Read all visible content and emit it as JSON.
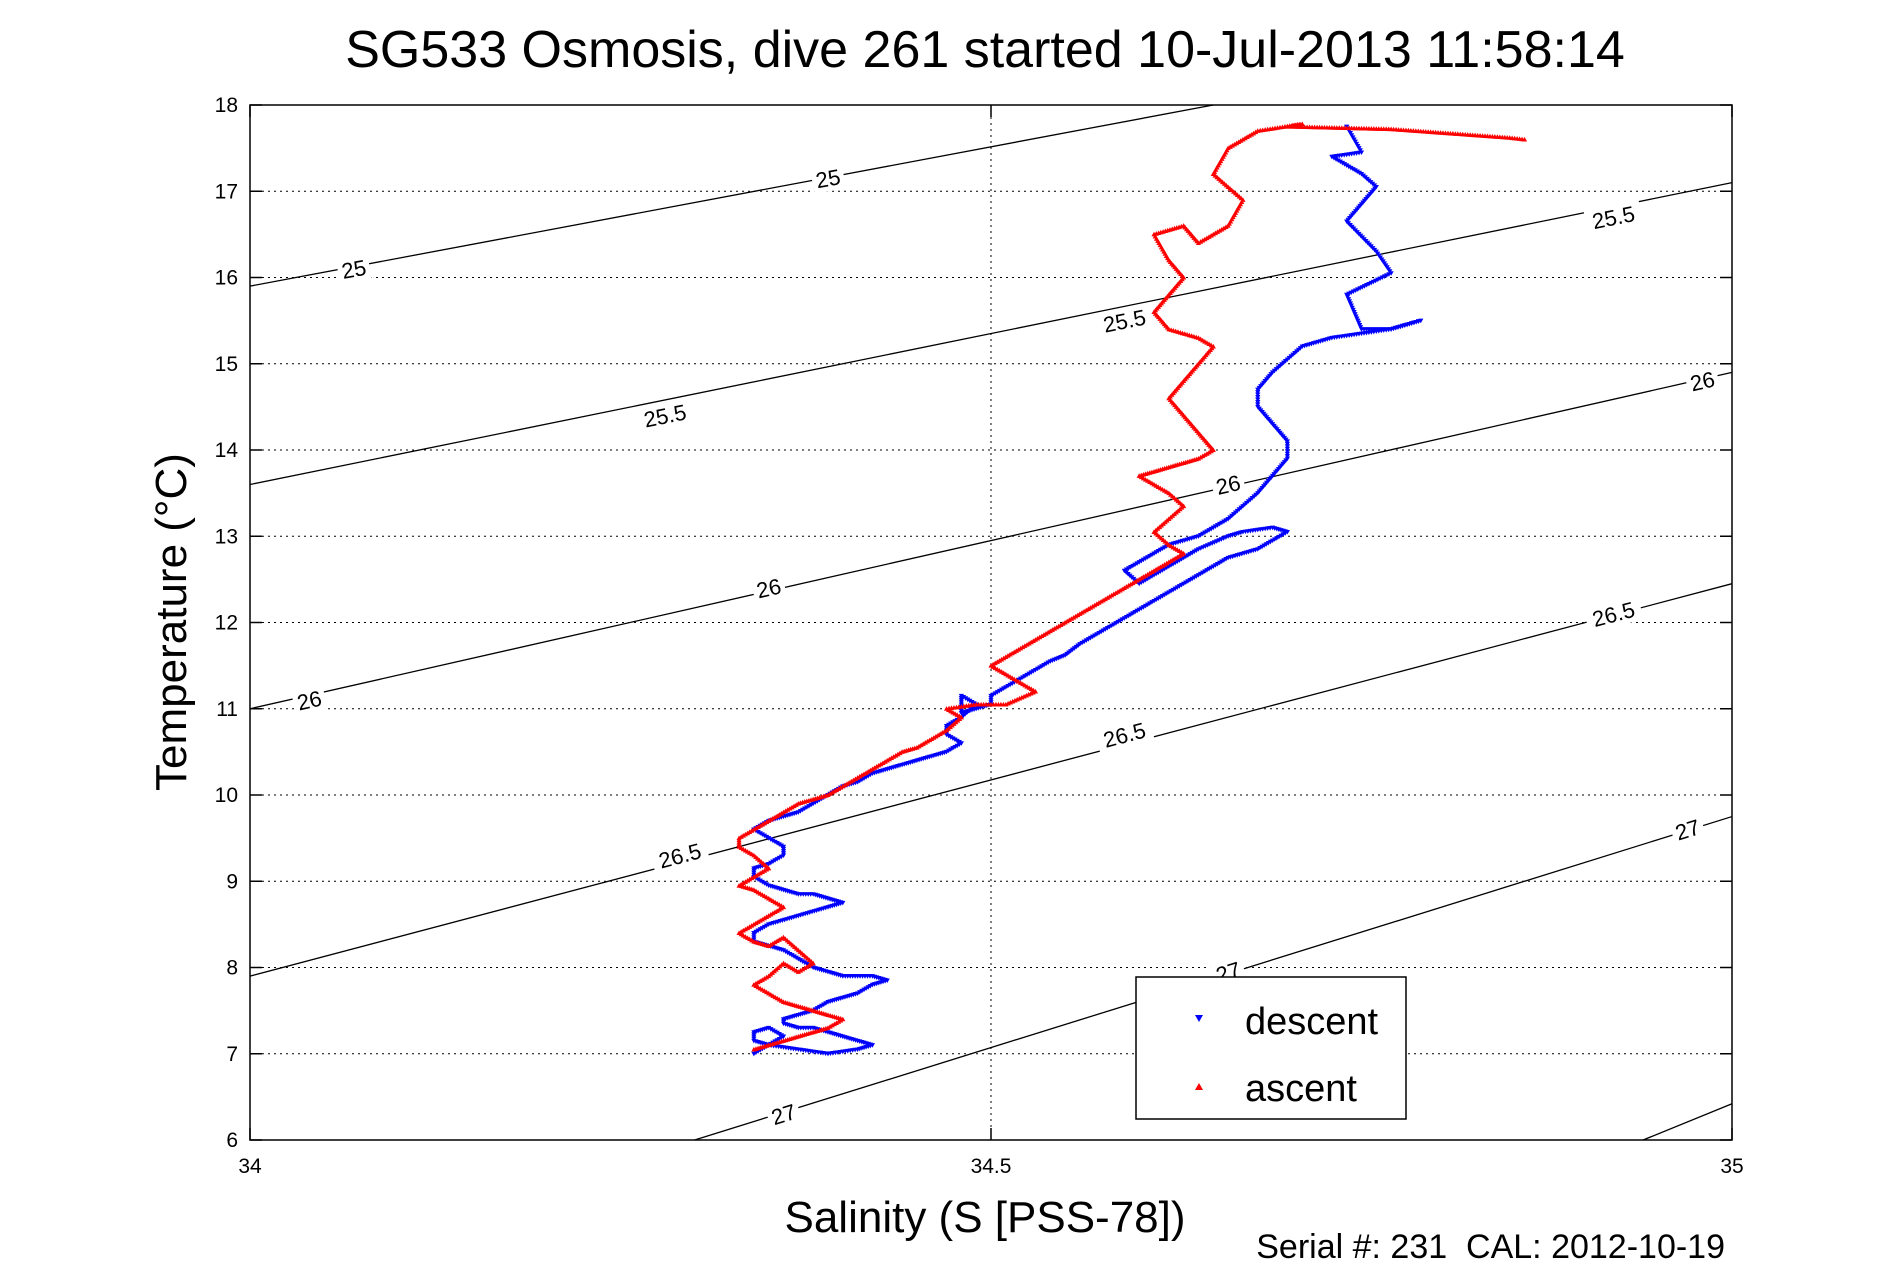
{
  "chart_data": {
    "type": "scatter",
    "title": "SG533 Osmosis, dive 261 started 10-Jul-2013 11:58:14",
    "xlabel": "Salinity (S [PSS-78])",
    "ylabel": "Temperature (°C)",
    "footer": "Serial #: 231  CAL: 2012-10-19",
    "xlim": [
      34,
      35
    ],
    "ylim": [
      6,
      18
    ],
    "xticks": [
      34,
      34.5,
      35
    ],
    "yticks": [
      6,
      7,
      8,
      9,
      10,
      11,
      12,
      13,
      14,
      15,
      16,
      17,
      18
    ],
    "grid": true,
    "legend_position": "bottom-right",
    "density_contours": [
      {
        "label": "25",
        "points": [
          [
            34,
            15.9
          ],
          [
            34.65,
            18
          ]
        ],
        "label_at": [
          [
            34.07,
            16.1
          ],
          [
            34.39,
            17.15
          ]
        ]
      },
      {
        "label": "25.5",
        "points": [
          [
            34,
            13.6
          ],
          [
            35,
            17.1
          ]
        ],
        "label_at": [
          [
            34.28,
            14.4
          ],
          [
            34.59,
            15.5
          ],
          [
            34.92,
            16.7
          ]
        ]
      },
      {
        "label": "26",
        "points": [
          [
            34,
            11.0
          ],
          [
            35,
            14.9
          ]
        ],
        "label_at": [
          [
            34.04,
            11.1
          ],
          [
            34.35,
            12.4
          ],
          [
            34.66,
            13.6
          ],
          [
            34.98,
            14.8
          ]
        ]
      },
      {
        "label": "26.5",
        "points": [
          [
            34,
            7.9
          ],
          [
            35,
            12.45
          ]
        ],
        "label_at": [
          [
            34.29,
            9.3
          ],
          [
            34.59,
            10.7
          ],
          [
            34.92,
            12.1
          ]
        ]
      },
      {
        "label": "27",
        "points": [
          [
            34.3,
            6
          ],
          [
            35,
            9.75
          ]
        ],
        "label_at": [
          [
            34.36,
            6.3
          ],
          [
            34.66,
            7.95
          ],
          [
            34.97,
            9.6
          ]
        ]
      },
      {
        "label": "",
        "points": [
          [
            34.94,
            6
          ],
          [
            35,
            6.42
          ]
        ],
        "label_at": []
      }
    ],
    "series": [
      {
        "name": "descent",
        "color": "#0000ff",
        "marker": "triangle-down",
        "x": [
          34.74,
          34.75,
          34.73,
          34.74,
          34.75,
          34.76,
          34.75,
          34.74,
          34.76,
          34.77,
          34.74,
          34.75,
          34.77,
          34.79,
          34.77,
          34.75,
          34.73,
          34.71,
          34.7,
          34.69,
          34.68,
          34.68,
          34.69,
          34.7,
          34.7,
          34.69,
          34.68,
          34.67,
          34.66,
          34.65,
          34.64,
          34.62,
          34.61,
          34.6,
          34.59,
          34.6,
          34.62,
          34.64,
          34.66,
          34.67,
          34.69,
          34.7,
          34.68,
          34.66,
          34.65,
          34.64,
          34.63,
          34.62,
          34.61,
          34.6,
          34.59,
          34.58,
          34.57,
          34.56,
          34.55,
          34.54,
          34.53,
          34.52,
          34.51,
          34.5,
          34.5,
          34.49,
          34.48,
          34.48,
          34.48,
          34.49,
          34.48,
          34.47,
          34.47,
          34.48,
          34.47,
          34.46,
          34.45,
          34.44,
          34.43,
          34.42,
          34.41,
          34.4,
          34.39,
          34.38,
          34.37,
          34.36,
          34.35,
          34.34,
          34.35,
          34.36,
          34.36,
          34.35,
          34.34,
          34.34,
          34.35,
          34.36,
          34.37,
          34.38,
          34.39,
          34.4,
          34.39,
          34.37,
          34.35,
          34.34,
          34.34,
          34.35,
          34.36,
          34.37,
          34.38,
          34.39,
          34.4,
          34.42,
          34.43,
          34.42,
          34.41,
          34.4,
          34.39,
          34.38,
          34.37,
          34.36,
          34.36,
          34.37,
          34.38,
          34.39,
          34.4,
          34.41,
          34.42,
          34.41,
          34.39,
          34.37,
          34.35,
          34.34,
          34.34,
          34.35,
          34.36,
          34.35,
          34.34
        ],
        "y": [
          17.75,
          17.45,
          17.4,
          17.3,
          17.2,
          17.05,
          16.85,
          16.65,
          16.3,
          16.05,
          15.8,
          15.4,
          15.4,
          15.5,
          15.4,
          15.35,
          15.3,
          15.2,
          15.05,
          14.9,
          14.7,
          14.5,
          14.3,
          14.1,
          13.9,
          13.7,
          13.5,
          13.35,
          13.2,
          13.1,
          13.0,
          12.9,
          12.8,
          12.7,
          12.6,
          12.45,
          12.65,
          12.85,
          13.0,
          13.05,
          13.1,
          13.05,
          12.85,
          12.75,
          12.65,
          12.55,
          12.45,
          12.35,
          12.25,
          12.15,
          12.05,
          11.95,
          11.85,
          11.75,
          11.62,
          11.55,
          11.45,
          11.35,
          11.25,
          11.15,
          11.05,
          11.0,
          10.95,
          11.05,
          11.15,
          11.05,
          10.9,
          10.8,
          10.7,
          10.6,
          10.5,
          10.45,
          10.4,
          10.35,
          10.3,
          10.25,
          10.15,
          10.1,
          10.0,
          9.9,
          9.8,
          9.75,
          9.7,
          9.6,
          9.5,
          9.4,
          9.3,
          9.2,
          9.15,
          9.05,
          8.95,
          8.9,
          8.85,
          8.85,
          8.8,
          8.75,
          8.7,
          8.6,
          8.5,
          8.4,
          8.3,
          8.25,
          8.2,
          8.1,
          8.0,
          7.95,
          7.9,
          7.9,
          7.85,
          7.8,
          7.7,
          7.65,
          7.6,
          7.5,
          7.45,
          7.4,
          7.35,
          7.3,
          7.3,
          7.25,
          7.2,
          7.15,
          7.1,
          7.05,
          7.0,
          7.05,
          7.1,
          7.15,
          7.25,
          7.3,
          7.2,
          7.1,
          7.0
        ]
      },
      {
        "name": "ascent",
        "color": "#ff0000",
        "marker": "triangle-up",
        "x": [
          34.86,
          34.85,
          34.77,
          34.7,
          34.71,
          34.68,
          34.66,
          34.65,
          34.67,
          34.66,
          34.64,
          34.63,
          34.61,
          34.62,
          34.63,
          34.62,
          34.61,
          34.62,
          34.64,
          34.65,
          34.64,
          34.63,
          34.62,
          34.63,
          34.64,
          34.65,
          34.64,
          34.63,
          34.62,
          34.61,
          34.6,
          34.61,
          34.62,
          34.63,
          34.62,
          34.61,
          34.62,
          34.63,
          34.62,
          34.61,
          34.6,
          34.59,
          34.58,
          34.57,
          34.56,
          34.55,
          34.54,
          34.53,
          34.52,
          34.51,
          34.5,
          34.51,
          34.52,
          34.53,
          34.51,
          34.49,
          34.47,
          34.48,
          34.47,
          34.46,
          34.45,
          34.44,
          34.43,
          34.42,
          34.41,
          34.4,
          34.39,
          34.38,
          34.37,
          34.36,
          34.35,
          34.34,
          34.33,
          34.33,
          34.34,
          34.35,
          34.34,
          34.33,
          34.34,
          34.35,
          34.36,
          34.35,
          34.34,
          34.33,
          34.34,
          34.35,
          34.36,
          34.37,
          34.38,
          34.37,
          34.36,
          34.35,
          34.34,
          34.35,
          34.36,
          34.37,
          34.38,
          34.39,
          34.4,
          34.39,
          34.38,
          34.37,
          34.36,
          34.35,
          34.34
        ],
        "y": [
          17.6,
          17.62,
          17.72,
          17.75,
          17.78,
          17.7,
          17.5,
          17.2,
          16.9,
          16.6,
          16.4,
          16.6,
          16.5,
          16.2,
          16.0,
          15.8,
          15.6,
          15.4,
          15.3,
          15.2,
          15.0,
          14.8,
          14.6,
          14.4,
          14.2,
          14.0,
          13.9,
          13.85,
          13.8,
          13.75,
          13.7,
          13.6,
          13.5,
          13.35,
          13.2,
          13.05,
          12.9,
          12.8,
          12.7,
          12.6,
          12.5,
          12.4,
          12.3,
          12.2,
          12.1,
          12.0,
          11.9,
          11.8,
          11.7,
          11.6,
          11.5,
          11.4,
          11.3,
          11.2,
          11.05,
          11.05,
          11.0,
          10.9,
          10.75,
          10.65,
          10.55,
          10.5,
          10.4,
          10.3,
          10.2,
          10.1,
          10.0,
          9.95,
          9.9,
          9.8,
          9.7,
          9.6,
          9.5,
          9.4,
          9.3,
          9.15,
          9.05,
          8.95,
          8.9,
          8.8,
          8.7,
          8.6,
          8.5,
          8.4,
          8.3,
          8.25,
          8.35,
          8.2,
          8.05,
          7.95,
          8.05,
          7.9,
          7.8,
          7.7,
          7.6,
          7.55,
          7.5,
          7.45,
          7.4,
          7.3,
          7.25,
          7.2,
          7.15,
          7.1,
          7.05
        ]
      }
    ]
  }
}
